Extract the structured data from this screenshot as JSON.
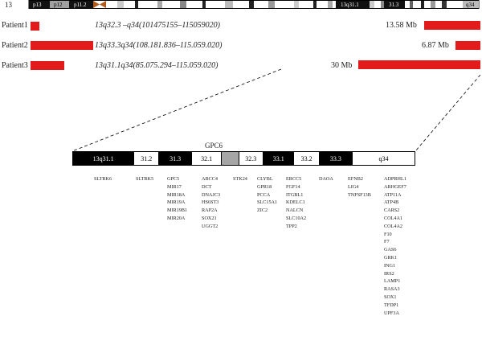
{
  "chromosome": {
    "label": "13",
    "band_labels": [
      "p13",
      "p12",
      "p11.2",
      "13q31.1",
      "31.3",
      "q34"
    ]
  },
  "patients": [
    {
      "name": "Patient1",
      "region": "13q32.3 –q34(101475155–115059020)",
      "size": "13.58 Mb"
    },
    {
      "name": "Patient2",
      "region": "13q33.3q34(108.181.836–115.059.020)",
      "size": "6.87 Mb"
    },
    {
      "name": "Patient3",
      "region": "13q31.1q34(85.075.294–115.059.020)",
      "size": "30 Mb"
    }
  ],
  "zoom": {
    "gene_above": "GPC6",
    "bands": [
      {
        "label": "13q31.1",
        "style": "black"
      },
      {
        "label": "31.2",
        "style": "white"
      },
      {
        "label": "31.3",
        "style": "black"
      },
      {
        "label": "32.1",
        "style": "white"
      },
      {
        "label": "",
        "style": "gray"
      },
      {
        "label": "32.3",
        "style": "white"
      },
      {
        "label": "33.1",
        "style": "black"
      },
      {
        "label": "33.2",
        "style": "white"
      },
      {
        "label": "33.3",
        "style": "black"
      },
      {
        "label": "q34",
        "style": "white"
      }
    ],
    "gene_columns": [
      {
        "genes": [
          "SLTRK6"
        ]
      },
      {
        "genes": [
          "SLTRK5"
        ]
      },
      {
        "genes": [
          "GPC5",
          "MIR17",
          "MIR18A",
          "MIR19A",
          "MIR19B1",
          "MIR20A"
        ]
      },
      {
        "genes": [
          "ABCC4",
          "DCT",
          "DNAJC3",
          "HS6ST3",
          "RAP2A",
          "SOX21",
          "UGGT2"
        ]
      },
      {
        "genes": [
          "STK24"
        ]
      },
      {
        "genes": [
          "CLYBL",
          "GPR18",
          "PCCA",
          "SLC15A1",
          "ZIC2"
        ]
      },
      {
        "genes": [
          "ERCC5",
          "FGF14",
          "ITGBL1",
          "KDELC1",
          "NALCN",
          "SLC10A2",
          "TPP2"
        ]
      },
      {
        "genes": [
          "DAOA"
        ]
      },
      {
        "genes": [
          "EFNB2",
          "LIG4",
          "TNFSF13B"
        ]
      },
      {
        "genes": [
          "ADPRHL1",
          "ARHGEF7",
          "ATP11A",
          "ATP4B",
          "CARS2",
          "COL4A1",
          "COL4A2",
          "F10",
          "F7",
          "GAS6",
          "GRK1",
          "ING1",
          "IRS2",
          "LAMP1",
          "RASA3",
          "SOX1",
          "TFDP1",
          "UPF3A"
        ]
      }
    ]
  },
  "colors": {
    "deletion": "#e31b1b",
    "centromere": "#b05a1c",
    "band_dark": "#000000",
    "band_gray": "#a6a6a6"
  }
}
